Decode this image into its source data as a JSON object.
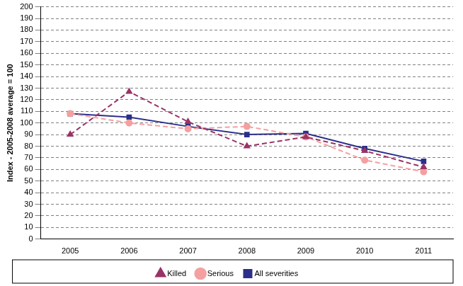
{
  "chart_data": {
    "type": "line",
    "y_label": "Index - 2005-2008 average = 100",
    "categories": [
      "2005",
      "2006",
      "2007",
      "2008",
      "2009",
      "2010",
      "2011"
    ],
    "series": [
      {
        "name": "Killed",
        "color": "#993366",
        "marker": "triangle",
        "line_style": "dashed",
        "values": [
          90,
          127,
          101,
          80,
          88,
          76,
          62
        ]
      },
      {
        "name": "Serious",
        "color": "#f4a0a0",
        "marker": "circle",
        "line_style": "dashed",
        "values": [
          108,
          100,
          95,
          97,
          88,
          68,
          58
        ]
      },
      {
        "name": "All severities",
        "color": "#2b2f8a",
        "marker": "square",
        "line_style": "solid",
        "values": [
          108,
          105,
          97,
          90,
          91,
          78,
          67
        ]
      }
    ],
    "ylim": [
      0,
      200
    ],
    "yticks": [
      0,
      10,
      20,
      30,
      40,
      50,
      60,
      70,
      80,
      90,
      100,
      110,
      120,
      130,
      140,
      150,
      160,
      170,
      180,
      190,
      200
    ],
    "grid": true,
    "legend": "bottom"
  }
}
